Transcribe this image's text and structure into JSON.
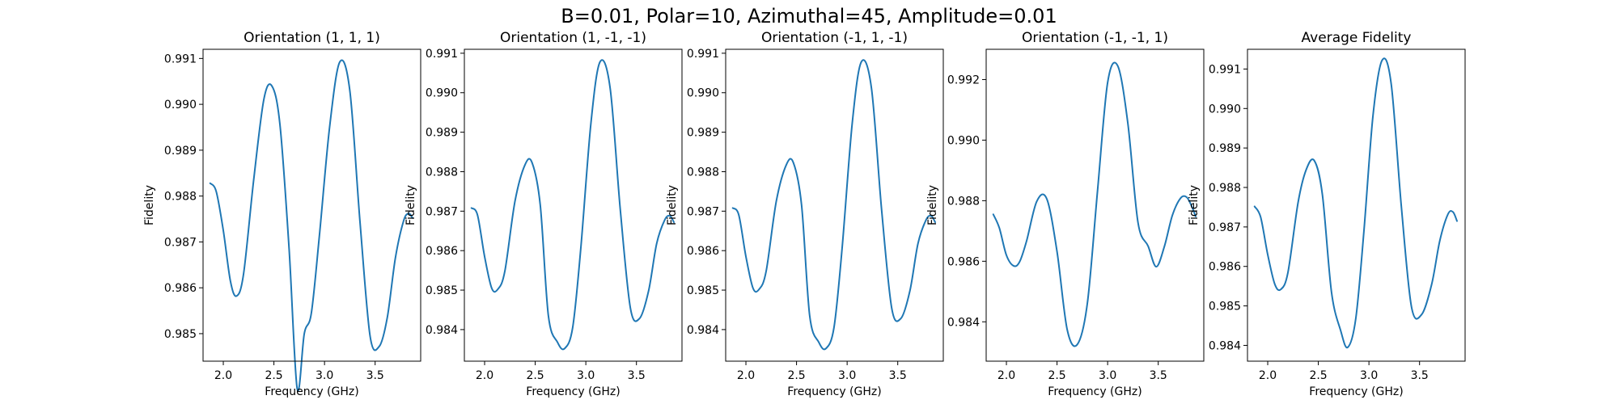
{
  "figure": {
    "title": "B=0.01, Polar=10, Azimuthal=45, Amplitude=0.01",
    "line_color": "#1f77b4"
  },
  "chart_data": [
    {
      "type": "line",
      "title": "Orientation (1, 1, 1)",
      "xlabel": "Frequency (GHz)",
      "ylabel": "Fidelity",
      "xlim": [
        1.8,
        3.95
      ],
      "ylim": [
        0.9844,
        0.9912
      ],
      "xticks": [
        2.0,
        2.5,
        3.0,
        3.5
      ],
      "xtick_labels": [
        "2.0",
        "2.5",
        "3.0",
        "3.5"
      ],
      "yticks": [
        0.985,
        0.986,
        0.987,
        0.988,
        0.989,
        0.99,
        0.991
      ],
      "ytick_labels": [
        "0.985",
        "0.986",
        "0.987",
        "0.988",
        "0.989",
        "0.990",
        "0.991"
      ],
      "x": [
        1.87,
        1.93,
        2.0,
        2.07,
        2.13,
        2.2,
        2.3,
        2.4,
        2.48,
        2.56,
        2.65,
        2.73,
        2.8,
        2.87,
        2.95,
        3.05,
        3.15,
        3.25,
        3.35,
        3.45,
        3.54,
        3.62,
        3.7,
        3.78,
        3.83,
        3.87
      ],
      "series": [
        {
          "values": [
            0.98828,
            0.9881,
            0.98725,
            0.98615,
            0.98582,
            0.9863,
            0.98835,
            0.9901,
            0.9904,
            0.98955,
            0.98685,
            0.9838,
            0.985,
            0.98545,
            0.98715,
            0.9895,
            0.99092,
            0.9903,
            0.98745,
            0.98495,
            0.98472,
            0.98535,
            0.98665,
            0.98745,
            0.98762,
            0.98752
          ]
        }
      ]
    },
    {
      "type": "line",
      "title": "Orientation (1, -1, -1)",
      "xlabel": "Frequency (GHz)",
      "ylabel": "Fidelity",
      "xlim": [
        1.8,
        3.95
      ],
      "ylim": [
        0.9832,
        0.9911
      ],
      "xticks": [
        2.0,
        2.5,
        3.0,
        3.5
      ],
      "xtick_labels": [
        "2.0",
        "2.5",
        "3.0",
        "3.5"
      ],
      "yticks": [
        0.984,
        0.985,
        0.986,
        0.987,
        0.988,
        0.989,
        0.99,
        0.991
      ],
      "ytick_labels": [
        "0.984",
        "0.985",
        "0.986",
        "0.987",
        "0.988",
        "0.989",
        "0.990",
        "0.991"
      ],
      "x": [
        1.87,
        1.93,
        2.0,
        2.07,
        2.13,
        2.2,
        2.3,
        2.4,
        2.47,
        2.55,
        2.63,
        2.72,
        2.79,
        2.87,
        2.95,
        3.05,
        3.14,
        3.24,
        3.34,
        3.44,
        3.53,
        3.62,
        3.7,
        3.78,
        3.83,
        3.87
      ],
      "series": [
        {
          "values": [
            0.98708,
            0.9869,
            0.98585,
            0.98505,
            0.98502,
            0.98548,
            0.98725,
            0.98818,
            0.98822,
            0.98715,
            0.98435,
            0.98368,
            0.98352,
            0.98405,
            0.98605,
            0.98922,
            0.99078,
            0.99012,
            0.98705,
            0.98455,
            0.98428,
            0.98498,
            0.98618,
            0.98678,
            0.98688,
            0.98672
          ]
        }
      ]
    },
    {
      "type": "line",
      "title": "Orientation (-1, 1, -1)",
      "xlabel": "Frequency (GHz)",
      "ylabel": "Fidelity",
      "xlim": [
        1.8,
        3.95
      ],
      "ylim": [
        0.9832,
        0.9911
      ],
      "xticks": [
        2.0,
        2.5,
        3.0,
        3.5
      ],
      "xtick_labels": [
        "2.0",
        "2.5",
        "3.0",
        "3.5"
      ],
      "yticks": [
        0.984,
        0.985,
        0.986,
        0.987,
        0.988,
        0.989,
        0.99,
        0.991
      ],
      "ytick_labels": [
        "0.984",
        "0.985",
        "0.986",
        "0.987",
        "0.988",
        "0.989",
        "0.990",
        "0.991"
      ],
      "x": [
        1.87,
        1.93,
        2.0,
        2.07,
        2.13,
        2.2,
        2.3,
        2.4,
        2.47,
        2.55,
        2.63,
        2.72,
        2.79,
        2.87,
        2.95,
        3.05,
        3.14,
        3.24,
        3.34,
        3.44,
        3.53,
        3.62,
        3.7,
        3.78,
        3.83,
        3.87
      ],
      "series": [
        {
          "values": [
            0.98708,
            0.9869,
            0.98585,
            0.98505,
            0.98502,
            0.98548,
            0.98725,
            0.98818,
            0.98822,
            0.98715,
            0.98435,
            0.98368,
            0.98352,
            0.98405,
            0.98605,
            0.98922,
            0.99078,
            0.99012,
            0.98705,
            0.98455,
            0.98428,
            0.98498,
            0.98618,
            0.98678,
            0.98688,
            0.98672
          ]
        }
      ]
    },
    {
      "type": "line",
      "title": "Orientation (-1, -1, 1)",
      "xlabel": "Frequency (GHz)",
      "ylabel": "Fidelity",
      "xlim": [
        1.8,
        3.95
      ],
      "ylim": [
        0.9827,
        0.993
      ],
      "xticks": [
        2.0,
        2.5,
        3.0,
        3.5
      ],
      "xtick_labels": [
        "2.0",
        "2.5",
        "3.0",
        "3.5"
      ],
      "yticks": [
        0.984,
        0.986,
        0.988,
        0.99,
        0.992
      ],
      "ytick_labels": [
        "0.984",
        "0.986",
        "0.988",
        "0.990",
        "0.992"
      ],
      "x": [
        1.87,
        1.93,
        2.0,
        2.07,
        2.13,
        2.2,
        2.3,
        2.4,
        2.5,
        2.6,
        2.7,
        2.8,
        2.9,
        3.0,
        3.1,
        3.2,
        3.3,
        3.4,
        3.48,
        3.56,
        3.64,
        3.72,
        3.78,
        3.83,
        3.87
      ],
      "series": [
        {
          "values": [
            0.98755,
            0.9871,
            0.9862,
            0.98585,
            0.98598,
            0.98668,
            0.98798,
            0.98805,
            0.98632,
            0.98375,
            0.98325,
            0.98462,
            0.98832,
            0.9919,
            0.99245,
            0.99055,
            0.98728,
            0.9865,
            0.98582,
            0.98648,
            0.98752,
            0.98808,
            0.98812,
            0.98782,
            0.98748
          ]
        }
      ]
    },
    {
      "type": "line",
      "title": "Average Fidelity",
      "xlabel": "Frequency (GHz)",
      "ylabel": "Fidelity",
      "xlim": [
        1.8,
        3.95
      ],
      "ylim": [
        0.9836,
        0.9915
      ],
      "xticks": [
        2.0,
        2.5,
        3.0,
        3.5
      ],
      "xtick_labels": [
        "2.0",
        "2.5",
        "3.0",
        "3.5"
      ],
      "yticks": [
        0.984,
        0.985,
        0.986,
        0.987,
        0.988,
        0.989,
        0.99,
        0.991
      ],
      "ytick_labels": [
        "0.984",
        "0.985",
        "0.986",
        "0.987",
        "0.988",
        "0.989",
        "0.990",
        "0.991"
      ],
      "x": [
        1.87,
        1.93,
        2.0,
        2.07,
        2.13,
        2.2,
        2.3,
        2.38,
        2.46,
        2.54,
        2.63,
        2.72,
        2.79,
        2.87,
        2.95,
        3.04,
        3.13,
        3.22,
        3.32,
        3.42,
        3.52,
        3.62,
        3.7,
        3.78,
        3.83,
        3.87
      ],
      "series": [
        {
          "values": [
            0.98752,
            0.98725,
            0.9863,
            0.98555,
            0.98542,
            0.98585,
            0.98762,
            0.98845,
            0.98868,
            0.98782,
            0.98535,
            0.98438,
            0.98395,
            0.98468,
            0.98688,
            0.98982,
            0.99122,
            0.99062,
            0.98752,
            0.98498,
            0.98478,
            0.98555,
            0.98665,
            0.98732,
            0.98738,
            0.98715
          ]
        }
      ]
    }
  ]
}
